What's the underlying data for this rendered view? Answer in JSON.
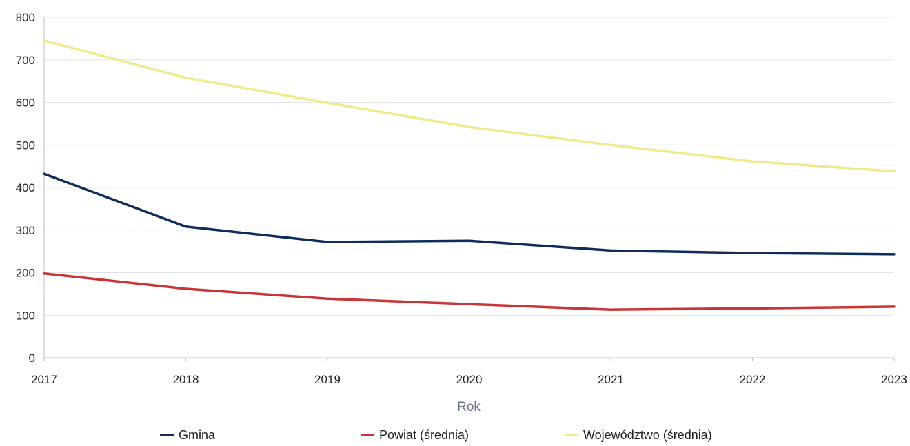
{
  "chart_data": {
    "type": "line",
    "title": "",
    "xlabel": "Rok",
    "ylabel": "",
    "x": [
      2017,
      2018,
      2019,
      2020,
      2021,
      2022,
      2023
    ],
    "x_tick_labels": [
      "2017",
      "2018",
      "2019",
      "2020",
      "2021",
      "2022",
      "2023"
    ],
    "ylim": [
      0,
      800
    ],
    "y_ticks": [
      0,
      100,
      200,
      300,
      400,
      500,
      600,
      700,
      800
    ],
    "y_tick_labels": [
      "0",
      "100",
      "200",
      "300",
      "400",
      "500",
      "600",
      "700",
      "800"
    ],
    "grid": "horizontal",
    "legend_position": "bottom",
    "series": [
      {
        "name": "Gmina",
        "color": "#0f2d5a",
        "values": [
          432,
          308,
          272,
          275,
          252,
          246,
          243
        ]
      },
      {
        "name": "Powiat (średnia)",
        "color": "#c93434",
        "values": [
          198,
          162,
          139,
          126,
          113,
          116,
          120
        ]
      },
      {
        "name": "Województwo (średnia)",
        "color": "#f2e88c",
        "values": [
          745,
          658,
          599,
          542,
          500,
          461,
          438
        ]
      }
    ]
  }
}
